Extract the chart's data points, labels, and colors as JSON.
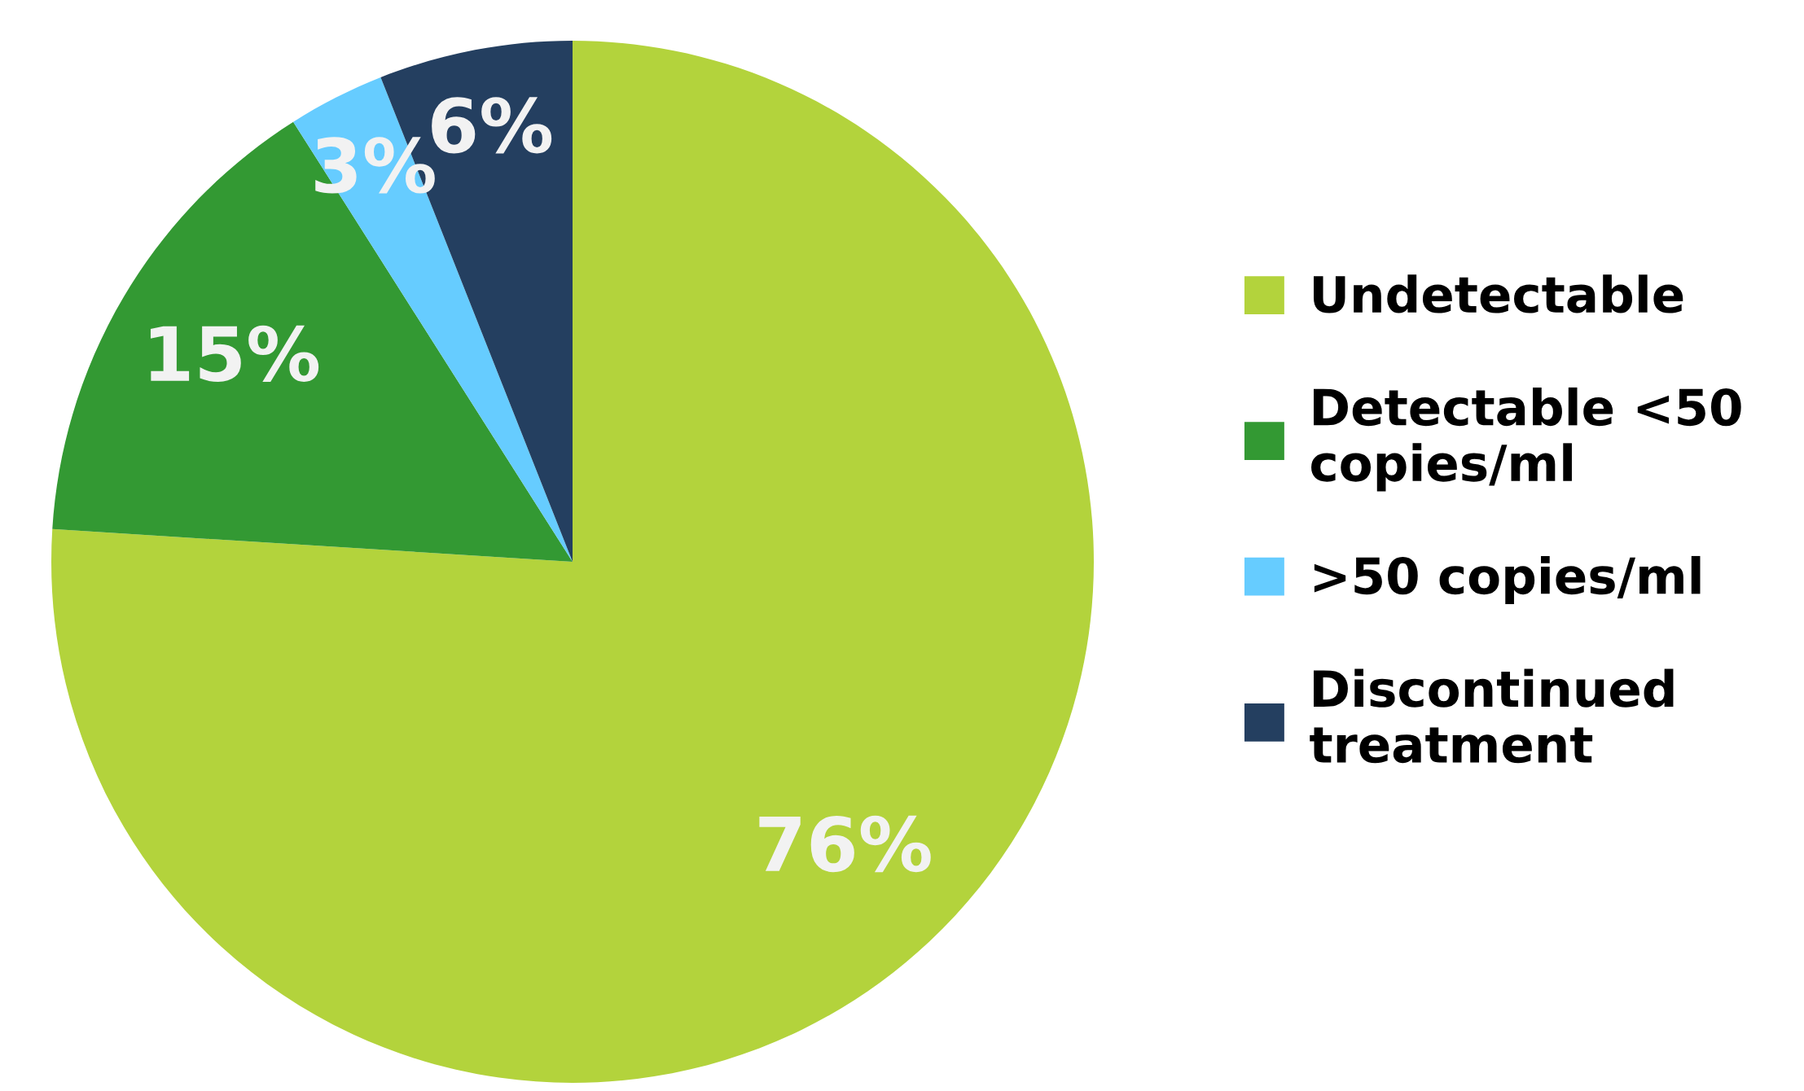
{
  "chart_data": {
    "type": "pie",
    "categories": [
      "Undetectable",
      "Detectable <50\ncopies/ml",
      ">50 copies/ml",
      "Discontinued\ntreatment"
    ],
    "values": [
      76,
      15,
      3,
      6
    ],
    "colors": [
      "#b3d33c",
      "#339933",
      "#66ccff",
      "#243f60"
    ],
    "value_labels": [
      "76%",
      "15%",
      "3%",
      "6%"
    ],
    "legend": "right"
  }
}
